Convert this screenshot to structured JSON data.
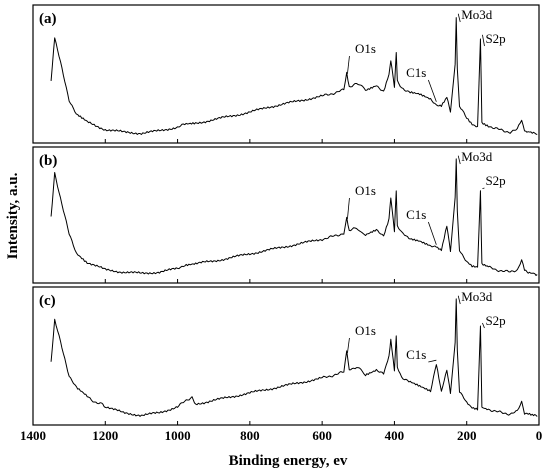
{
  "chart_data": {
    "type": "line",
    "xlabel": "Binding energy, ev",
    "ylabel": "Intensity, a.u.",
    "xlim": [
      1400,
      0
    ],
    "x_reversed": true,
    "xticks": [
      1400,
      1200,
      1000,
      800,
      600,
      400,
      200,
      0
    ],
    "x_tick_labels": [
      "1400",
      "1200",
      "1000",
      "800",
      "600",
      "400",
      "200",
      "0"
    ],
    "grid": false,
    "legend": "none",
    "panels": [
      {
        "label": "(a)",
        "peaks": [
          {
            "name": "O1s",
            "x": 530
          },
          {
            "name": "C1s",
            "x": 284
          },
          {
            "name": "Mo3d",
            "x": 229
          },
          {
            "name": "S2p",
            "x": 162
          }
        ],
        "series": [
          {
            "x": [
              1350,
              1340,
              1300,
              1280,
              1250,
              1200,
              1150,
              1100,
              1050,
              1000,
              980,
              950,
              900,
              850,
              800,
              750,
              700,
              650,
              600,
              560,
              540,
              532,
              525,
              505,
              480,
              450,
              430,
              415,
              410,
              400,
              395,
              392,
              380,
              360,
              330,
              300,
              284,
              270,
              255,
              245,
              232,
              229,
              226,
              220,
              200,
              185,
              170,
              162,
              158,
              140,
              120,
              100,
              80,
              60,
              48,
              40,
              30,
              15,
              5
            ],
            "y": [
              0.45,
              0.8,
              0.3,
              0.18,
              0.12,
              0.06,
              0.04,
              0.03,
              0.05,
              0.08,
              0.1,
              0.11,
              0.14,
              0.17,
              0.2,
              0.24,
              0.27,
              0.3,
              0.33,
              0.36,
              0.38,
              0.52,
              0.4,
              0.44,
              0.38,
              0.42,
              0.36,
              0.5,
              0.62,
              0.4,
              0.68,
              0.45,
              0.4,
              0.36,
              0.34,
              0.3,
              0.26,
              0.25,
              0.32,
              0.2,
              0.6,
              0.97,
              0.55,
              0.25,
              0.15,
              0.1,
              0.08,
              0.8,
              0.12,
              0.09,
              0.07,
              0.05,
              0.04,
              0.06,
              0.14,
              0.05,
              0.04,
              0.03,
              0.02
            ]
          }
        ]
      },
      {
        "label": "(b)",
        "peaks": [
          {
            "name": "O1s",
            "x": 530
          },
          {
            "name": "C1s",
            "x": 284
          },
          {
            "name": "Mo3d",
            "x": 229
          },
          {
            "name": "S2p",
            "x": 162
          }
        ],
        "series": [
          {
            "x": [
              1350,
              1340,
              1300,
              1280,
              1250,
              1200,
              1150,
              1100,
              1050,
              1000,
              980,
              950,
              900,
              850,
              800,
              750,
              700,
              650,
              600,
              560,
              540,
              532,
              525,
              505,
              480,
              450,
              430,
              415,
              410,
              400,
              395,
              392,
              380,
              360,
              330,
              300,
              284,
              270,
              255,
              245,
              232,
              229,
              226,
              220,
              200,
              185,
              170,
              162,
              158,
              140,
              120,
              100,
              80,
              60,
              48,
              40,
              30,
              15,
              5
            ],
            "y": [
              0.5,
              0.85,
              0.35,
              0.2,
              0.12,
              0.06,
              0.04,
              0.03,
              0.04,
              0.07,
              0.1,
              0.11,
              0.13,
              0.16,
              0.19,
              0.22,
              0.25,
              0.28,
              0.31,
              0.34,
              0.36,
              0.48,
              0.38,
              0.4,
              0.34,
              0.38,
              0.34,
              0.48,
              0.65,
              0.38,
              0.7,
              0.42,
              0.36,
              0.32,
              0.3,
              0.26,
              0.24,
              0.22,
              0.42,
              0.22,
              0.65,
              0.97,
              0.55,
              0.22,
              0.13,
              0.09,
              0.08,
              0.7,
              0.1,
              0.08,
              0.06,
              0.05,
              0.04,
              0.06,
              0.14,
              0.05,
              0.04,
              0.03,
              0.02
            ]
          }
        ]
      },
      {
        "label": "(c)",
        "peaks": [
          {
            "name": "O1s",
            "x": 530
          },
          {
            "name": "C1s",
            "x": 284
          },
          {
            "name": "Mo3d",
            "x": 229
          },
          {
            "name": "S2p",
            "x": 162
          }
        ],
        "series": [
          {
            "x": [
              1350,
              1340,
              1300,
              1280,
              1250,
              1230,
              1210,
              1200,
              1150,
              1100,
              1050,
              1000,
              980,
              960,
              950,
              900,
              850,
              800,
              750,
              700,
              650,
              600,
              560,
              540,
              532,
              525,
              505,
              480,
              450,
              430,
              415,
              410,
              400,
              395,
              392,
              380,
              360,
              330,
              300,
              284,
              270,
              255,
              245,
              232,
              229,
              226,
              220,
              200,
              185,
              170,
              162,
              158,
              140,
              120,
              100,
              80,
              60,
              48,
              40,
              30,
              15,
              5
            ],
            "y": [
              0.45,
              0.8,
              0.35,
              0.25,
              0.18,
              0.14,
              0.12,
              0.1,
              0.05,
              0.03,
              0.05,
              0.1,
              0.14,
              0.18,
              0.12,
              0.15,
              0.18,
              0.21,
              0.24,
              0.27,
              0.3,
              0.33,
              0.36,
              0.38,
              0.55,
              0.4,
              0.42,
              0.36,
              0.4,
              0.36,
              0.5,
              0.65,
              0.38,
              0.68,
              0.42,
              0.34,
              0.3,
              0.26,
              0.22,
              0.45,
              0.22,
              0.4,
              0.2,
              0.62,
              0.97,
              0.55,
              0.22,
              0.13,
              0.09,
              0.08,
              0.75,
              0.1,
              0.08,
              0.06,
              0.05,
              0.04,
              0.06,
              0.14,
              0.05,
              0.04,
              0.03,
              0.02
            ]
          }
        ]
      }
    ]
  }
}
